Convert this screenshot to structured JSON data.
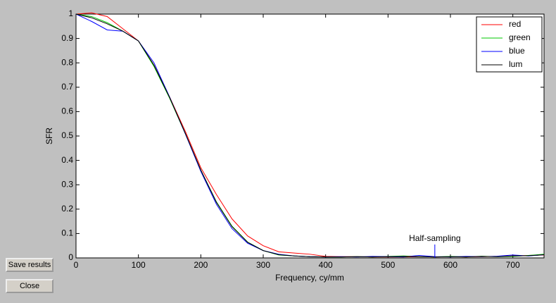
{
  "chart_data": {
    "type": "line",
    "xlabel": "Frequency, cy/mm",
    "ylabel": "SFR",
    "x": [
      0,
      25,
      50,
      75,
      100,
      125,
      150,
      175,
      200,
      225,
      250,
      275,
      300,
      325,
      350,
      375,
      400,
      425,
      450,
      475,
      500,
      525,
      550,
      575,
      600,
      625,
      650,
      675,
      700,
      725,
      750
    ],
    "series": [
      {
        "name": "red",
        "color": "#ff0000",
        "values": [
          1,
          1.005,
          0.99,
          0.94,
          0.89,
          0.79,
          0.66,
          0.52,
          0.37,
          0.26,
          0.16,
          0.09,
          0.05,
          0.025,
          0.02,
          0.015,
          0.006,
          0.005,
          0.005,
          0.004,
          0.004,
          0.004,
          0.005,
          0.004,
          0.005,
          0.004,
          0.005,
          0.006,
          0.008,
          0.01,
          0.012
        ]
      },
      {
        "name": "green",
        "color": "#00c800",
        "values": [
          1,
          0.99,
          0.965,
          0.93,
          0.89,
          0.785,
          0.655,
          0.51,
          0.36,
          0.23,
          0.13,
          0.065,
          0.03,
          0.012,
          0.008,
          0.005,
          0.004,
          0.004,
          0.005,
          0.004,
          0.006,
          0.008,
          0.005,
          0.004,
          0.006,
          0.004,
          0.007,
          0.005,
          0.006,
          0.01,
          0.015
        ]
      },
      {
        "name": "blue",
        "color": "#0000ff",
        "values": [
          1,
          0.97,
          0.935,
          0.93,
          0.89,
          0.8,
          0.66,
          0.51,
          0.355,
          0.22,
          0.12,
          0.06,
          0.03,
          0.015,
          0.008,
          0.005,
          0.004,
          0.005,
          0.004,
          0.006,
          0.005,
          0.004,
          0.01,
          0.005,
          0.004,
          0.006,
          0.005,
          0.007,
          0.012,
          0.008,
          0.013
        ]
      },
      {
        "name": "lum",
        "color": "#000000",
        "values": [
          1,
          0.985,
          0.96,
          0.93,
          0.89,
          0.79,
          0.658,
          0.512,
          0.36,
          0.228,
          0.128,
          0.064,
          0.03,
          0.013,
          0.008,
          0.005,
          0.004,
          0.004,
          0.005,
          0.004,
          0.005,
          0.006,
          0.005,
          0.004,
          0.005,
          0.004,
          0.006,
          0.005,
          0.008,
          0.009,
          0.013
        ]
      }
    ],
    "xlim": [
      0,
      750
    ],
    "ylim": [
      0,
      1
    ],
    "xticks": [
      0,
      100,
      200,
      300,
      400,
      500,
      600,
      700
    ],
    "yticks": [
      0,
      0.1,
      0.2,
      0.3,
      0.4,
      0.5,
      0.6,
      0.7,
      0.8,
      0.9,
      1
    ],
    "legend": "upper right",
    "annotations": [
      {
        "text": "Half-sampling",
        "x": 575,
        "y": 0.055
      }
    ]
  },
  "buttons": [
    "Save results",
    "Close"
  ]
}
